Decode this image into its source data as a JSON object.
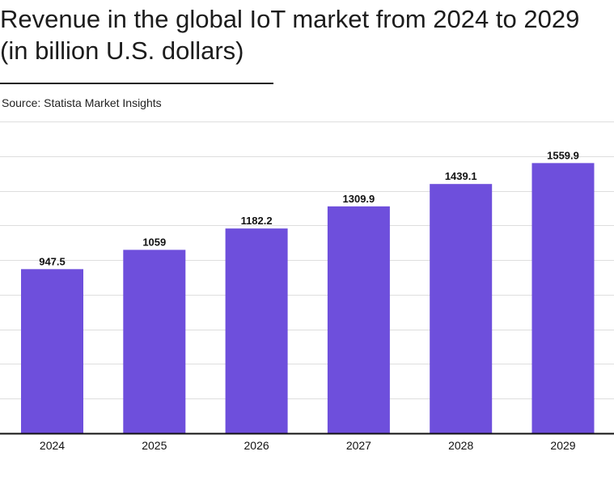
{
  "header": {
    "title": "Revenue in the global IoT market from 2024 to 2029 (in billion U.S. dollars)",
    "source": "Source: Statista Market Insights"
  },
  "colors": {
    "bar": "#6e4fdc",
    "grid": "#dedede",
    "axis": "#111111"
  },
  "chart_data": {
    "type": "bar",
    "title": "Revenue in the global IoT market from 2024 to 2029 (in billion U.S. dollars)",
    "xlabel": "",
    "ylabel": "",
    "categories": [
      "2024",
      "2025",
      "2026",
      "2027",
      "2028",
      "2029"
    ],
    "values": [
      947.5,
      1059,
      1182.2,
      1309.9,
      1439.1,
      1559.9
    ],
    "labels": [
      "947.5",
      "1059",
      "1182.2",
      "1309.9",
      "1439.1",
      "1559.9"
    ],
    "ylim": [
      0,
      1800
    ],
    "ytick_step": 200,
    "grid": true,
    "legend": "none"
  }
}
